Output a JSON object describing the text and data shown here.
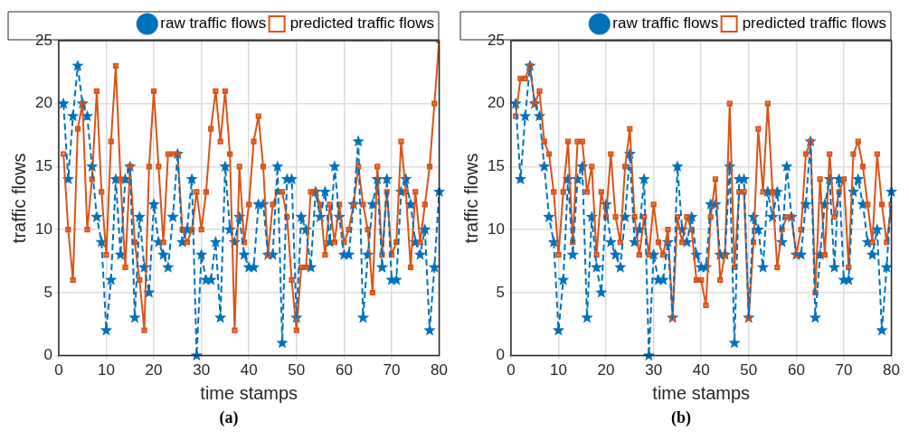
{
  "chart_data": [
    {
      "type": "line",
      "xlabel": "time stamps",
      "ylabel": "traffic flows",
      "annotations": [
        "(a)"
      ],
      "x": [
        1,
        2,
        3,
        4,
        5,
        6,
        7,
        8,
        9,
        10,
        11,
        12,
        13,
        14,
        15,
        16,
        17,
        18,
        19,
        20,
        21,
        22,
        23,
        24,
        25,
        26,
        27,
        28,
        29,
        30,
        31,
        32,
        33,
        34,
        35,
        36,
        37,
        38,
        39,
        40,
        41,
        42,
        43,
        44,
        45,
        46,
        47,
        48,
        49,
        50,
        51,
        52,
        53,
        54,
        55,
        56,
        57,
        58,
        59,
        60,
        61,
        62,
        63,
        64,
        65,
        66,
        67,
        68,
        69,
        70,
        71,
        72,
        73,
        74,
        75,
        76,
        77,
        78,
        79,
        80
      ],
      "xlim": [
        0,
        80
      ],
      "xticks": [
        0,
        10,
        20,
        30,
        40,
        50,
        60,
        70,
        80
      ],
      "ylim": [
        0,
        25
      ],
      "yticks": [
        0,
        5,
        10,
        15,
        20,
        25
      ],
      "grid": true,
      "legend": "top right",
      "series": [
        {
          "name": "raw traffic flows",
          "color": "#0072bd",
          "marker": "star",
          "line_style": "dashed",
          "values": [
            20,
            14,
            19,
            23,
            20,
            19,
            15,
            11,
            9,
            2,
            6,
            14,
            8,
            14,
            15,
            3,
            11,
            7,
            5,
            12,
            9,
            8,
            7,
            11,
            16,
            9,
            10,
            14,
            0,
            8,
            6,
            6,
            9,
            3,
            15,
            10,
            9,
            11,
            8,
            7,
            7,
            12,
            12,
            8,
            8,
            15,
            1,
            14,
            14,
            3,
            11,
            10,
            7,
            13,
            11,
            13,
            9,
            15,
            11,
            8,
            8,
            12,
            17,
            3,
            8,
            12,
            14,
            7,
            14,
            6,
            6,
            13,
            14,
            12,
            9,
            8,
            10,
            2,
            7,
            13
          ]
        },
        {
          "name": "predicted traffic flows",
          "color": "#d95319",
          "marker": "square",
          "line_style": "solid",
          "values": [
            16,
            10,
            6,
            18,
            20,
            10,
            14,
            21,
            13,
            8,
            17,
            23,
            14,
            7,
            15,
            9,
            6,
            2,
            15,
            21,
            15,
            9,
            16,
            16,
            16,
            10,
            9,
            10,
            13,
            10,
            13,
            18,
            21,
            17,
            21,
            16,
            2,
            15,
            9,
            12,
            17,
            19,
            15,
            8,
            12,
            13,
            13,
            11,
            6,
            2,
            7,
            7,
            13,
            13,
            12,
            8,
            12,
            9,
            12,
            9,
            10,
            12,
            15,
            12,
            10,
            5,
            15,
            8,
            13,
            8,
            9,
            17,
            13,
            7,
            13,
            9,
            12,
            15,
            20,
            25
          ]
        }
      ]
    },
    {
      "type": "line",
      "xlabel": "time stamps",
      "ylabel": "traffic flows",
      "annotations": [
        "(b)"
      ],
      "x": [
        1,
        2,
        3,
        4,
        5,
        6,
        7,
        8,
        9,
        10,
        11,
        12,
        13,
        14,
        15,
        16,
        17,
        18,
        19,
        20,
        21,
        22,
        23,
        24,
        25,
        26,
        27,
        28,
        29,
        30,
        31,
        32,
        33,
        34,
        35,
        36,
        37,
        38,
        39,
        40,
        41,
        42,
        43,
        44,
        45,
        46,
        47,
        48,
        49,
        50,
        51,
        52,
        53,
        54,
        55,
        56,
        57,
        58,
        59,
        60,
        61,
        62,
        63,
        64,
        65,
        66,
        67,
        68,
        69,
        70,
        71,
        72,
        73,
        74,
        75,
        76,
        77,
        78,
        79,
        80
      ],
      "xlim": [
        0,
        80
      ],
      "xticks": [
        0,
        10,
        20,
        30,
        40,
        50,
        60,
        70,
        80
      ],
      "ylim": [
        0,
        25
      ],
      "yticks": [
        0,
        5,
        10,
        15,
        20,
        25
      ],
      "grid": true,
      "legend": "top right",
      "series": [
        {
          "name": "raw traffic flows",
          "color": "#0072bd",
          "marker": "star",
          "line_style": "dashed",
          "values": [
            20,
            14,
            19,
            23,
            20,
            19,
            15,
            11,
            9,
            2,
            6,
            14,
            8,
            14,
            15,
            3,
            11,
            7,
            5,
            12,
            9,
            8,
            7,
            11,
            16,
            9,
            10,
            14,
            0,
            8,
            6,
            6,
            9,
            3,
            15,
            10,
            9,
            11,
            8,
            7,
            7,
            12,
            12,
            8,
            8,
            15,
            1,
            14,
            14,
            3,
            11,
            10,
            7,
            13,
            11,
            13,
            9,
            15,
            11,
            8,
            8,
            12,
            17,
            3,
            8,
            12,
            14,
            7,
            14,
            6,
            6,
            13,
            14,
            12,
            9,
            8,
            10,
            2,
            7,
            13
          ]
        },
        {
          "name": "predicted traffic flows",
          "color": "#d95319",
          "marker": "square",
          "line_style": "solid",
          "values": [
            19,
            22,
            22,
            23,
            20,
            21,
            17,
            16,
            13,
            8,
            13,
            17,
            9,
            17,
            17,
            13,
            15,
            8,
            13,
            11,
            16,
            11,
            9,
            15,
            18,
            11,
            8,
            11,
            8,
            12,
            9,
            8,
            10,
            3,
            11,
            9,
            11,
            10,
            6,
            6,
            4,
            11,
            14,
            6,
            8,
            20,
            7,
            13,
            13,
            3,
            9,
            18,
            13,
            20,
            13,
            7,
            10,
            11,
            11,
            8,
            10,
            16,
            17,
            5,
            14,
            8,
            16,
            11,
            13,
            14,
            7,
            16,
            17,
            15,
            12,
            9,
            16,
            12,
            9,
            12
          ]
        }
      ]
    }
  ]
}
